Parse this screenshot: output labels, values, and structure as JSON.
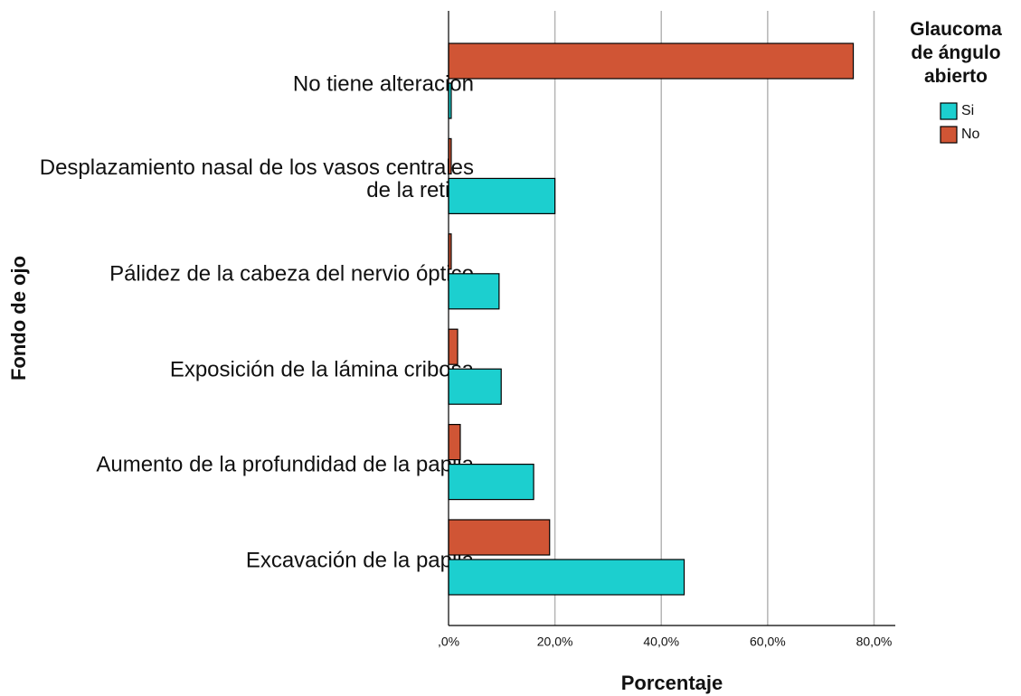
{
  "chart_data": {
    "type": "hbar",
    "x_label": "Porcentaje",
    "y_label": "Fondo de ojo",
    "legend_title": "Glaucoma de ángulo abierto",
    "legend_position": "right",
    "categories": [
      "No tiene alteración",
      "Desplazamiento nasal de los vasos centrales de la retina",
      "Pálidez de la cabeza del nervio óptico",
      "Exposición de la lámina cribosa",
      "Aumento de la profundidad de la papila",
      "Excavación de la papila"
    ],
    "series": [
      {
        "name": "Si",
        "color": "#1ccfcf",
        "values": [
          0.5,
          20.0,
          9.5,
          9.9,
          16.0,
          44.3
        ]
      },
      {
        "name": "No",
        "color": "#d05535",
        "values": [
          76.1,
          0.5,
          0.5,
          1.7,
          2.2,
          19.0
        ]
      }
    ],
    "xlim": [
      0,
      84
    ],
    "xticks": [
      {
        "value": 0,
        "label": ",0%"
      },
      {
        "value": 20,
        "label": "20,0%"
      },
      {
        "value": 40,
        "label": "40,0%"
      },
      {
        "value": 60,
        "label": "60,0%"
      },
      {
        "value": 80,
        "label": "80,0%"
      }
    ],
    "grid": true
  }
}
